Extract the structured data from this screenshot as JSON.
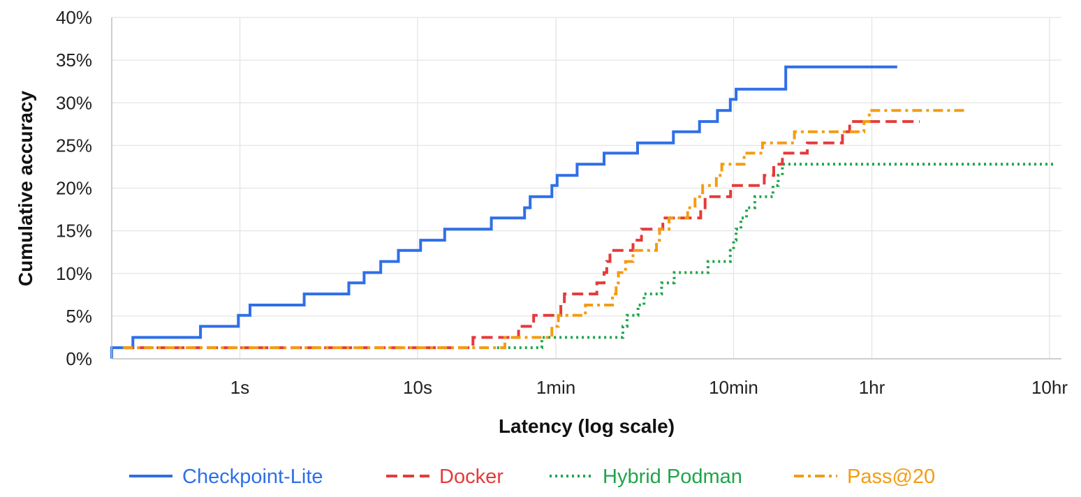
{
  "chart_data": {
    "type": "line",
    "step": true,
    "xlabel": "Latency (log scale)",
    "ylabel": "Cumulative accuracy",
    "x_scale": "log",
    "x_unit": "seconds",
    "xlim": [
      0.19,
      42000
    ],
    "ylim": [
      0,
      40
    ],
    "x_ticks": [
      {
        "value": 1,
        "label": "1s"
      },
      {
        "value": 10,
        "label": "10s"
      },
      {
        "value": 60,
        "label": "1min"
      },
      {
        "value": 600,
        "label": "10min"
      },
      {
        "value": 3600,
        "label": "1hr"
      },
      {
        "value": 36000,
        "label": "10hr"
      }
    ],
    "y_ticks": [
      {
        "value": 0,
        "label": "0%"
      },
      {
        "value": 5,
        "label": "5%"
      },
      {
        "value": 10,
        "label": "10%"
      },
      {
        "value": 15,
        "label": "15%"
      },
      {
        "value": 20,
        "label": "20%"
      },
      {
        "value": 25,
        "label": "25%"
      },
      {
        "value": 30,
        "label": "30%"
      },
      {
        "value": 35,
        "label": "35%"
      },
      {
        "value": 40,
        "label": "40%"
      }
    ],
    "grid": true,
    "legend_position": "bottom",
    "series": [
      {
        "name": "Checkpoint-Lite",
        "color": "#2f6fe8",
        "dash": "solid",
        "points": [
          [
            0.19,
            0
          ],
          [
            0.19,
            1.3
          ],
          [
            0.25,
            1.3
          ],
          [
            0.25,
            2.5
          ],
          [
            0.6,
            2.5
          ],
          [
            0.6,
            3.8
          ],
          [
            0.98,
            3.8
          ],
          [
            0.98,
            5.1
          ],
          [
            1.14,
            5.1
          ],
          [
            1.14,
            6.3
          ],
          [
            2.3,
            6.3
          ],
          [
            2.3,
            7.6
          ],
          [
            4.1,
            7.6
          ],
          [
            4.1,
            8.9
          ],
          [
            5.0,
            8.9
          ],
          [
            5.0,
            10.1
          ],
          [
            6.2,
            10.1
          ],
          [
            6.2,
            11.4
          ],
          [
            7.8,
            11.4
          ],
          [
            7.8,
            12.7
          ],
          [
            10.4,
            12.7
          ],
          [
            10.4,
            13.9
          ],
          [
            14.2,
            13.9
          ],
          [
            14.2,
            15.2
          ],
          [
            26,
            15.2
          ],
          [
            26,
            16.5
          ],
          [
            40,
            16.5
          ],
          [
            40,
            17.7
          ],
          [
            43,
            17.7
          ],
          [
            43,
            19.0
          ],
          [
            57,
            19.0
          ],
          [
            57,
            20.3
          ],
          [
            61,
            20.3
          ],
          [
            61,
            21.5
          ],
          [
            79,
            21.5
          ],
          [
            79,
            22.8
          ],
          [
            112,
            22.8
          ],
          [
            112,
            24.1
          ],
          [
            173,
            24.1
          ],
          [
            173,
            25.3
          ],
          [
            275,
            25.3
          ],
          [
            275,
            26.6
          ],
          [
            386,
            26.6
          ],
          [
            386,
            27.8
          ],
          [
            487,
            27.8
          ],
          [
            487,
            29.1
          ],
          [
            575,
            29.1
          ],
          [
            575,
            30.4
          ],
          [
            620,
            30.4
          ],
          [
            620,
            31.6
          ],
          [
            1180,
            31.6
          ],
          [
            1180,
            34.2
          ],
          [
            5000,
            34.2
          ]
        ]
      },
      {
        "name": "Docker",
        "color": "#e53a3a",
        "dash": "dashed",
        "points": [
          [
            0.22,
            1.3
          ],
          [
            20.5,
            1.3
          ],
          [
            20.5,
            2.5
          ],
          [
            37,
            2.5
          ],
          [
            37,
            3.8
          ],
          [
            45,
            3.8
          ],
          [
            45,
            5.1
          ],
          [
            64,
            5.1
          ],
          [
            64,
            6.3
          ],
          [
            67,
            6.3
          ],
          [
            67,
            7.6
          ],
          [
            102,
            7.6
          ],
          [
            102,
            8.9
          ],
          [
            112,
            8.9
          ],
          [
            112,
            10.1
          ],
          [
            116,
            10.1
          ],
          [
            116,
            11.4
          ],
          [
            121,
            11.4
          ],
          [
            121,
            12.7
          ],
          [
            163,
            12.7
          ],
          [
            163,
            13.9
          ],
          [
            182,
            13.9
          ],
          [
            182,
            15.2
          ],
          [
            240,
            15.2
          ],
          [
            240,
            16.5
          ],
          [
            392,
            16.5
          ],
          [
            392,
            17.7
          ],
          [
            415,
            17.7
          ],
          [
            415,
            19.0
          ],
          [
            577,
            19.0
          ],
          [
            577,
            20.3
          ],
          [
            893,
            20.3
          ],
          [
            893,
            21.5
          ],
          [
            1010,
            21.5
          ],
          [
            1010,
            22.8
          ],
          [
            1130,
            22.8
          ],
          [
            1130,
            24.1
          ],
          [
            1560,
            24.1
          ],
          [
            1560,
            25.3
          ],
          [
            2460,
            25.3
          ],
          [
            2460,
            26.6
          ],
          [
            2700,
            26.6
          ],
          [
            2700,
            27.8
          ],
          [
            6700,
            27.8
          ]
        ]
      },
      {
        "name": "Hybrid Podman",
        "color": "#1fa54a",
        "dash": "dotted",
        "points": [
          [
            28,
            1.3
          ],
          [
            50,
            1.3
          ],
          [
            50,
            2.5
          ],
          [
            143,
            2.5
          ],
          [
            143,
            3.8
          ],
          [
            151,
            3.8
          ],
          [
            151,
            5.1
          ],
          [
            174,
            5.1
          ],
          [
            174,
            6.3
          ],
          [
            188,
            6.3
          ],
          [
            188,
            7.6
          ],
          [
            236,
            7.6
          ],
          [
            236,
            8.9
          ],
          [
            278,
            8.9
          ],
          [
            278,
            10.1
          ],
          [
            431,
            10.1
          ],
          [
            431,
            11.4
          ],
          [
            575,
            11.4
          ],
          [
            575,
            12.7
          ],
          [
            600,
            12.7
          ],
          [
            600,
            13.9
          ],
          [
            620,
            13.9
          ],
          [
            620,
            15.2
          ],
          [
            660,
            15.2
          ],
          [
            660,
            16.5
          ],
          [
            710,
            16.5
          ],
          [
            710,
            17.7
          ],
          [
            790,
            17.7
          ],
          [
            790,
            19.0
          ],
          [
            1000,
            19.0
          ],
          [
            1000,
            20.3
          ],
          [
            1070,
            20.3
          ],
          [
            1070,
            21.5
          ],
          [
            1130,
            21.5
          ],
          [
            1130,
            22.8
          ],
          [
            39000,
            22.8
          ]
        ]
      },
      {
        "name": "Pass@20",
        "color": "#f39c12",
        "dash": "dashdot",
        "points": [
          [
            0.22,
            1.3
          ],
          [
            31,
            1.3
          ],
          [
            31,
            2.5
          ],
          [
            57,
            2.5
          ],
          [
            57,
            3.8
          ],
          [
            62,
            3.8
          ],
          [
            62,
            5.1
          ],
          [
            88,
            5.1
          ],
          [
            88,
            6.3
          ],
          [
            125,
            6.3
          ],
          [
            125,
            7.6
          ],
          [
            131,
            7.6
          ],
          [
            131,
            8.9
          ],
          [
            135,
            8.9
          ],
          [
            135,
            10.1
          ],
          [
            148,
            10.1
          ],
          [
            148,
            11.4
          ],
          [
            163,
            11.4
          ],
          [
            163,
            12.7
          ],
          [
            221,
            12.7
          ],
          [
            221,
            13.9
          ],
          [
            230,
            13.9
          ],
          [
            230,
            15.2
          ],
          [
            260,
            15.2
          ],
          [
            260,
            16.5
          ],
          [
            331,
            16.5
          ],
          [
            331,
            17.7
          ],
          [
            364,
            17.7
          ],
          [
            364,
            19.0
          ],
          [
            402,
            19.0
          ],
          [
            402,
            20.3
          ],
          [
            480,
            20.3
          ],
          [
            480,
            21.5
          ],
          [
            515,
            21.5
          ],
          [
            515,
            22.8
          ],
          [
            688,
            22.8
          ],
          [
            688,
            24.1
          ],
          [
            873,
            24.1
          ],
          [
            873,
            25.3
          ],
          [
            1320,
            25.3
          ],
          [
            1320,
            26.6
          ],
          [
            3250,
            26.6
          ],
          [
            3250,
            27.8
          ],
          [
            3480,
            27.8
          ],
          [
            3480,
            29.1
          ],
          [
            12000,
            29.1
          ]
        ]
      }
    ]
  }
}
